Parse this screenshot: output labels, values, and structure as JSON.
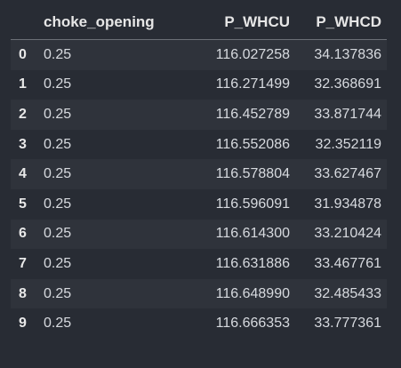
{
  "table": {
    "columns": [
      "",
      "choke_opening",
      "P_WHCU",
      "P_WHCD"
    ],
    "rows": [
      {
        "index": "0",
        "choke_opening": "0.25",
        "P_WHCU": "116.027258",
        "P_WHCD": "34.137836"
      },
      {
        "index": "1",
        "choke_opening": "0.25",
        "P_WHCU": "116.271499",
        "P_WHCD": "32.368691"
      },
      {
        "index": "2",
        "choke_opening": "0.25",
        "P_WHCU": "116.452789",
        "P_WHCD": "33.871744"
      },
      {
        "index": "3",
        "choke_opening": "0.25",
        "P_WHCU": "116.552086",
        "P_WHCD": "32.352119"
      },
      {
        "index": "4",
        "choke_opening": "0.25",
        "P_WHCU": "116.578804",
        "P_WHCD": "33.627467"
      },
      {
        "index": "5",
        "choke_opening": "0.25",
        "P_WHCU": "116.596091",
        "P_WHCD": "31.934878"
      },
      {
        "index": "6",
        "choke_opening": "0.25",
        "P_WHCU": "116.614300",
        "P_WHCD": "33.210424"
      },
      {
        "index": "7",
        "choke_opening": "0.25",
        "P_WHCU": "116.631886",
        "P_WHCD": "33.467761"
      },
      {
        "index": "8",
        "choke_opening": "0.25",
        "P_WHCU": "116.648990",
        "P_WHCD": "32.485433"
      },
      {
        "index": "9",
        "choke_opening": "0.25",
        "P_WHCU": "116.666353",
        "P_WHCD": "33.777361"
      }
    ]
  },
  "colors": {
    "background": "#282c34",
    "row_stripe": "#2f333b",
    "text": "#d7dadf",
    "header_text": "#e6e6e6"
  }
}
